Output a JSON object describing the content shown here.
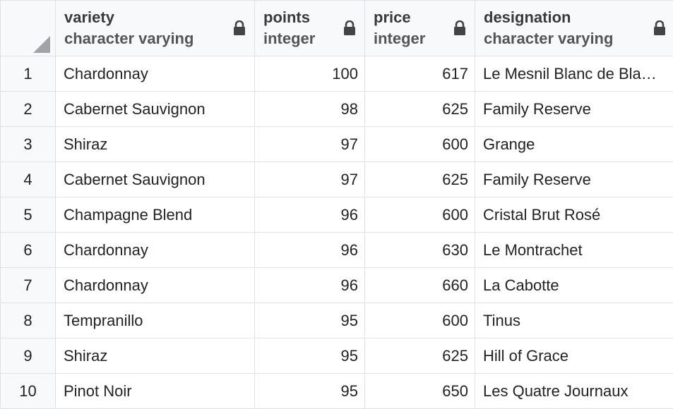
{
  "columns": [
    {
      "name": "variety",
      "type": "character varying",
      "icon": "lock-icon"
    },
    {
      "name": "points",
      "type": "integer",
      "icon": "lock-icon"
    },
    {
      "name": "price",
      "type": "integer",
      "icon": "lock-icon"
    },
    {
      "name": "designation",
      "type": "character varying",
      "icon": "lock-icon"
    }
  ],
  "rows": [
    {
      "n": "1",
      "variety": "Chardonnay",
      "points": "100",
      "price": "617",
      "designation": "Le Mesnil Blanc de Bla…"
    },
    {
      "n": "2",
      "variety": "Cabernet Sauvignon",
      "points": "98",
      "price": "625",
      "designation": "Family Reserve"
    },
    {
      "n": "3",
      "variety": "Shiraz",
      "points": "97",
      "price": "600",
      "designation": "Grange"
    },
    {
      "n": "4",
      "variety": "Cabernet Sauvignon",
      "points": "97",
      "price": "625",
      "designation": "Family Reserve"
    },
    {
      "n": "5",
      "variety": "Champagne Blend",
      "points": "96",
      "price": "600",
      "designation": "Cristal Brut Rosé"
    },
    {
      "n": "6",
      "variety": "Chardonnay",
      "points": "96",
      "price": "630",
      "designation": "Le Montrachet"
    },
    {
      "n": "7",
      "variety": "Chardonnay",
      "points": "96",
      "price": "660",
      "designation": "La Cabotte"
    },
    {
      "n": "8",
      "variety": "Tempranillo",
      "points": "95",
      "price": "600",
      "designation": "Tinus"
    },
    {
      "n": "9",
      "variety": "Shiraz",
      "points": "95",
      "price": "625",
      "designation": "Hill of Grace"
    },
    {
      "n": "10",
      "variety": "Pinot Noir",
      "points": "95",
      "price": "650",
      "designation": "Les Quatre Journaux"
    }
  ]
}
